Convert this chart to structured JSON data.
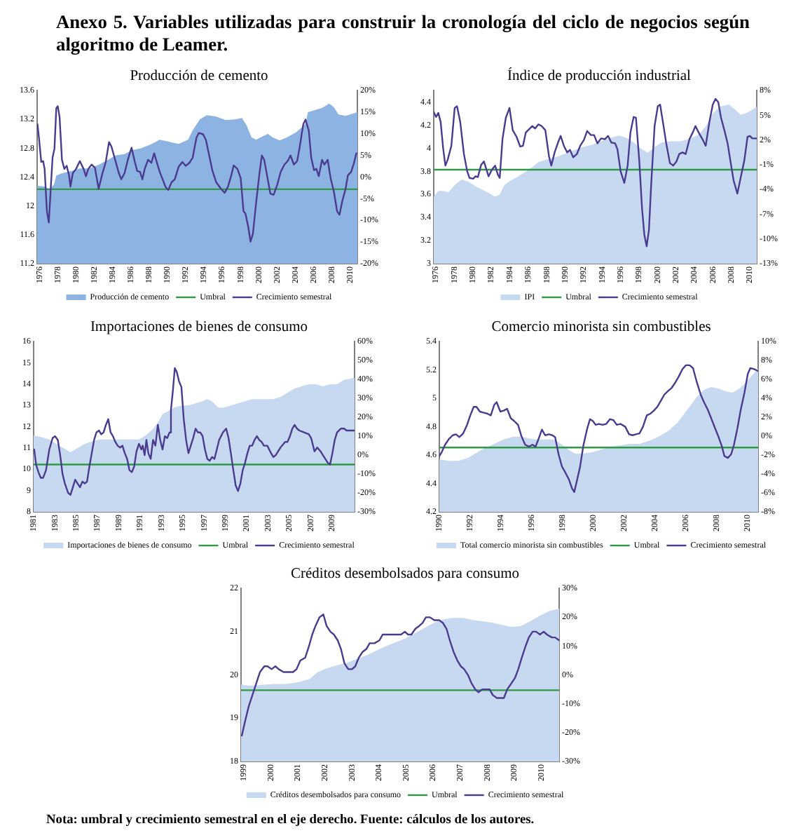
{
  "chart_data": [
    {
      "type": "other",
      "title": "Anexo 5. Variables utilizadas para construir la cronología del ciclo de negocios según algoritmo de Leamer."
    },
    {
      "type": "line",
      "title": "Producción de cemento",
      "xlim": [
        1975.7,
        2010.8
      ],
      "xticks": [
        1976,
        1978,
        1980,
        1982,
        1984,
        1986,
        1988,
        1990,
        1992,
        1994,
        1996,
        1998,
        2000,
        2002,
        2004,
        2006,
        2008,
        2010
      ],
      "ylim": [
        11.2,
        13.6
      ],
      "yticks": [
        11.2,
        11.6,
        12,
        12.4,
        12.8,
        13.2,
        13.6
      ],
      "y2lim": [
        -20,
        20
      ],
      "y2ticks": [
        {
          "value": -20,
          "label": "-20%"
        },
        {
          "value": -15,
          "label": "-15%"
        },
        {
          "value": -10,
          "label": "-10%"
        },
        {
          "value": -5,
          "label": "-5%"
        },
        {
          "value": 0,
          "label": "0%"
        },
        {
          "value": 5,
          "label": "5%"
        },
        {
          "value": 10,
          "label": "10%"
        },
        {
          "value": 15,
          "label": "15%"
        },
        {
          "value": 20,
          "label": "20%"
        }
      ],
      "legend": "bottom",
      "series": [
        {
          "name": "Producción de cemento",
          "type": "area",
          "color": "#8db3e2",
          "x": [
            1975.7,
            1976.52,
            1977.03,
            1977.55,
            1977.8,
            1978.32,
            1979.35,
            1980.38,
            1981.41,
            1982.44,
            1983.47,
            1984.25,
            1985.28,
            1986.05,
            1987.08,
            1988.11,
            1989.14,
            1990.18,
            1991.21,
            1992.24,
            1992.75,
            1993.53,
            1994.3,
            1995.33,
            1996.36,
            1997.39,
            1998.16,
            1998.68,
            1999.2,
            1999.71,
            2000.48,
            2001,
            2001.52,
            2002.29,
            2003.06,
            2004.09,
            2005.12,
            2005.38,
            2005.9,
            2006.93,
            2007.7,
            2008.22,
            2008.73,
            2009.51,
            2010.8
          ],
          "values": [
            12.28,
            12.27,
            12.23,
            12.3,
            12.42,
            12.45,
            12.48,
            12.52,
            12.52,
            12.57,
            12.64,
            12.7,
            12.72,
            12.77,
            12.8,
            12.85,
            12.92,
            12.89,
            12.86,
            12.92,
            13.05,
            13.2,
            13.26,
            13.24,
            13.19,
            13.2,
            13.22,
            13.11,
            12.95,
            12.92,
            12.97,
            13,
            12.95,
            12.91,
            12.95,
            13.02,
            13.14,
            13.3,
            13.32,
            13.36,
            13.42,
            13.37,
            13.27,
            13.25,
            13.3
          ]
        },
        {
          "name": "Umbral",
          "type": "line",
          "axis": "y2",
          "color": "#2f9a45",
          "x": [
            1975.7,
            2010.8
          ],
          "values": [
            -2.8,
            -2.8
          ]
        },
        {
          "name": "Crecimiento semestral",
          "type": "line",
          "axis": "y2",
          "color": "#4b3b8f",
          "x": [
            1975.74,
            1975.9,
            1976.15,
            1976.36,
            1976.52,
            1976.77,
            1976.98,
            1977.19,
            1977.39,
            1977.6,
            1977.8,
            1977.96,
            1978.16,
            1978.42,
            1978.68,
            1978.94,
            1979.2,
            1979.35,
            1979.61,
            1979.97,
            1980.38,
            1980.79,
            1981.05,
            1981.31,
            1981.67,
            1982.03,
            1982.44,
            1982.86,
            1983.22,
            1983.58,
            1983.84,
            1984.25,
            1984.66,
            1984.92,
            1985.28,
            1985.64,
            1986.05,
            1986.41,
            1986.67,
            1986.98,
            1987.24,
            1987.49,
            1987.86,
            1988.22,
            1988.53,
            1988.89,
            1989.14,
            1989.4,
            1989.76,
            1990.07,
            1990.43,
            1990.79,
            1991.21,
            1991.62,
            1991.98,
            1992.39,
            1992.75,
            1993.16,
            1993.42,
            1993.89,
            1994.2,
            1994.56,
            1994.92,
            1995.33,
            1995.85,
            1996.26,
            1996.62,
            1996.98,
            1997.24,
            1997.65,
            1998.01,
            1998.32,
            1998.53,
            1998.84,
            1999.09,
            1999.35,
            1999.71,
            2000.07,
            2000.33,
            2000.59,
            2000.9,
            2001.26,
            2001.62,
            2002.03,
            2002.39,
            2002.8,
            2003.16,
            2003.47,
            2003.84,
            2004.2,
            2004.45,
            2004.87,
            2005.12,
            2005.48,
            2005.74,
            2006.05,
            2006.31,
            2006.57,
            2006.93,
            2007.19,
            2007.55,
            2007.86,
            2008.22,
            2008.58,
            2008.84,
            2009.14,
            2009.51,
            2009.76,
            2010.12,
            2010.43,
            2010.69
          ],
          "values": [
            12.2,
            9.1,
            3.5,
            3.7,
            1.9,
            -7.9,
            -10.5,
            -2.7,
            4.5,
            6.6,
            15.9,
            16.4,
            13.9,
            4.0,
            1.9,
            2.6,
            0.4,
            -2.2,
            0.9,
            1.9,
            3.7,
            1.9,
            0.2,
            1.9,
            2.9,
            2.2,
            -2.7,
            0.9,
            3.5,
            8.1,
            7.1,
            4.0,
            0.9,
            -0.5,
            0.9,
            4.0,
            6.8,
            3.5,
            1.4,
            1.2,
            -0.5,
            1.9,
            4.0,
            3.3,
            5.5,
            2.9,
            1.2,
            -0.2,
            -2.2,
            -3.0,
            -1.2,
            -0.5,
            2.4,
            3.5,
            2.6,
            3.3,
            4.5,
            9.1,
            10.2,
            9.9,
            8.6,
            5.0,
            1.4,
            -1.2,
            -2.7,
            -3.6,
            -2.2,
            0.4,
            2.7,
            1.9,
            -0.2,
            -7.9,
            -8.4,
            -11.5,
            -14.9,
            -13.1,
            -5.8,
            0.9,
            5.0,
            4.0,
            0.4,
            -3.8,
            -4.1,
            -1.7,
            1.2,
            2.9,
            3.7,
            5.0,
            2.9,
            3.7,
            6.6,
            12.2,
            13.3,
            10.7,
            4.5,
            1.6,
            1.9,
            0.2,
            4.0,
            2.9,
            4.0,
            -0.2,
            -3.3,
            -7.9,
            -8.7,
            -5.6,
            -2.7,
            0.4,
            1.2,
            3.3,
            5.5
          ]
        }
      ]
    },
    {
      "type": "line",
      "title": "Índice de producción industrial",
      "xlim": [
        1975.75,
        2010.75
      ],
      "xticks": [
        1976,
        1978,
        1980,
        1982,
        1984,
        1986,
        1988,
        1990,
        1992,
        1994,
        1996,
        1998,
        2000,
        2002,
        2004,
        2006,
        2008,
        2010
      ],
      "ylim": [
        3,
        4.5
      ],
      "yticks": [
        3,
        3.2,
        3.4,
        3.6,
        3.8,
        4,
        4.2,
        4.4
      ],
      "y2lim": [
        -13,
        8
      ],
      "y2ticks": [
        {
          "value": -13,
          "label": "-13%"
        },
        {
          "value": -10,
          "label": "-10%"
        },
        {
          "value": -7,
          "label": "-7%"
        },
        {
          "value": -4,
          "label": "-4%"
        },
        {
          "value": -1,
          "label": "-1%"
        },
        {
          "value": 2,
          "label": "2%"
        },
        {
          "value": 5,
          "label": "5%"
        },
        {
          "value": 8,
          "label": "8%"
        }
      ],
      "legend": "bottom",
      "series": [
        {
          "name": "IPI",
          "type": "area",
          "color": "#c6d9f1",
          "x": [
            1975.75,
            1976.25,
            1976.76,
            1977.36,
            1978.02,
            1978.77,
            1979.53,
            1980.28,
            1981.04,
            1981.79,
            1982.4,
            1982.9,
            1983.41,
            1984.06,
            1984.82,
            1985.57,
            1986.33,
            1987.08,
            1987.84,
            1988.85,
            1989.85,
            1990.86,
            1991.87,
            1992.88,
            1993.88,
            1994.89,
            1995.8,
            1996.65,
            1997.41,
            1998.17,
            1998.92,
            1999.68,
            2000.43,
            2001.44,
            2002.45,
            2003.46,
            2004.46,
            2005.22,
            2005.98,
            2006.73,
            2007.74,
            2008.49,
            2009,
            2009.75,
            2010.75
          ],
          "values": [
            3.58,
            3.63,
            3.63,
            3.62,
            3.68,
            3.73,
            3.71,
            3.67,
            3.64,
            3.61,
            3.58,
            3.6,
            3.68,
            3.72,
            3.75,
            3.79,
            3.83,
            3.88,
            3.9,
            3.92,
            3.95,
            3.98,
            4.01,
            4.03,
            4.06,
            4.09,
            4.11,
            4.09,
            4.05,
            4,
            3.96,
            4.01,
            4.05,
            4.06,
            4.06,
            4.08,
            4.12,
            4.19,
            4.3,
            4.36,
            4.38,
            4.33,
            4.29,
            4.31,
            4.36
          ]
        },
        {
          "name": "Umbral",
          "type": "line",
          "axis": "y2",
          "color": "#2f9a45",
          "x": [
            1975.75,
            2010.75
          ],
          "values": [
            -1.6,
            -1.6
          ]
        },
        {
          "name": "Crecimiento semestral",
          "type": "line",
          "axis": "y2",
          "color": "#4b3b8f",
          "x": [
            1975.75,
            1976,
            1976.25,
            1976.5,
            1976.76,
            1977.01,
            1977.26,
            1977.66,
            1978.02,
            1978.27,
            1978.62,
            1979.02,
            1979.38,
            1979.63,
            1980.03,
            1980.28,
            1980.53,
            1980.89,
            1981.19,
            1981.44,
            1981.69,
            1982.05,
            1982.4,
            1982.7,
            1982.9,
            1983.2,
            1983.56,
            1983.96,
            1984.31,
            1984.72,
            1985.12,
            1985.42,
            1985.72,
            1986.08,
            1986.43,
            1986.73,
            1987.08,
            1987.44,
            1987.84,
            1988.24,
            1988.49,
            1988.85,
            1989.25,
            1989.5,
            1989.85,
            1990.21,
            1990.51,
            1990.86,
            1991.26,
            1991.62,
            1992.02,
            1992.37,
            1992.78,
            1993.13,
            1993.48,
            1993.88,
            1994.29,
            1994.64,
            1994.99,
            1995.4,
            1995.65,
            1996,
            1996.4,
            1996.76,
            1997.06,
            1997.41,
            1997.66,
            1998.02,
            1998.32,
            1998.57,
            1998.82,
            1999.07,
            1999.32,
            1999.68,
            2000.03,
            2000.28,
            2000.58,
            2000.94,
            2001.34,
            2001.69,
            2002.05,
            2002.35,
            2002.7,
            2003.05,
            2003.46,
            2003.81,
            2004.11,
            2004.46,
            2004.87,
            2005.22,
            2005.62,
            2005.98,
            2006.28,
            2006.58,
            2006.88,
            2007.24,
            2007.59,
            2007.89,
            2008.24,
            2008.65,
            2009,
            2009.4,
            2009.75,
            2010.01,
            2010.26,
            2010.75
          ],
          "values": [
            5.4,
            4.8,
            5.3,
            4.2,
            1.1,
            -1.1,
            -0.4,
            1.3,
            5.9,
            6.1,
            4.2,
            0.3,
            -1.8,
            -2.6,
            -2.7,
            -2.4,
            -2.5,
            -1.0,
            -0.6,
            -1.5,
            -2.4,
            -1.6,
            -1.1,
            -2.2,
            -2.6,
            2.1,
            4.7,
            5.9,
            3.2,
            2.4,
            1.2,
            1.3,
            2.9,
            3.3,
            3.7,
            3.4,
            3.9,
            3.7,
            3.2,
            0.0,
            -1.1,
            0.5,
            1.8,
            2.5,
            1.3,
            0.5,
            0.8,
            -0.1,
            0.3,
            1.3,
            2.0,
            3.1,
            2.6,
            2.6,
            1.6,
            2.2,
            2.1,
            2.5,
            1.7,
            1.6,
            0.9,
            -1.8,
            -3.2,
            -1.1,
            2.9,
            4.8,
            4.7,
            -0.5,
            -6.3,
            -9.5,
            -10.9,
            -8.9,
            -3.2,
            3.7,
            6.1,
            6.3,
            4.2,
            1.6,
            -0.8,
            -1.1,
            -0.6,
            0.3,
            0.5,
            0.3,
            2.1,
            2.9,
            3.7,
            2.9,
            2.1,
            1.3,
            4.2,
            6.3,
            7.0,
            6.6,
            4.7,
            3.2,
            1.6,
            -0.5,
            -2.9,
            -4.5,
            -2.6,
            -0.5,
            2.4,
            2.5,
            2.2,
            2.2
          ]
        }
      ]
    },
    {
      "type": "line",
      "title": "Importaciones de bienes de consumo",
      "xlim": [
        1981,
        2011.1
      ],
      "xticks": [
        1981,
        1983,
        1985,
        1987,
        1989,
        1991,
        1993,
        1995,
        1997,
        1999,
        2001,
        2003,
        2005,
        2007,
        2009
      ],
      "ylim": [
        8,
        16
      ],
      "yticks": [
        8,
        9,
        10,
        11,
        12,
        13,
        14,
        15,
        16
      ],
      "y2lim": [
        -30,
        60
      ],
      "y2ticks": [
        {
          "value": -30,
          "label": "-30%"
        },
        {
          "value": -20,
          "label": "-20%"
        },
        {
          "value": -10,
          "label": "-10%"
        },
        {
          "value": 0,
          "label": "0%"
        },
        {
          "value": 10,
          "label": "10%"
        },
        {
          "value": 20,
          "label": "20%"
        },
        {
          "value": 30,
          "label": "30%"
        },
        {
          "value": 40,
          "label": "40%"
        },
        {
          "value": 50,
          "label": "50%"
        },
        {
          "value": 60,
          "label": "60%"
        }
      ],
      "legend": "bottom",
      "series": [
        {
          "name": "Importaciones de bienes de consumo",
          "type": "area",
          "color": "#c6d9f1",
          "x": [
            1981,
            1981.81,
            1982.47,
            1983.13,
            1983.8,
            1984.46,
            1985.12,
            1985.79,
            1986.45,
            1987.12,
            1987.78,
            1988.44,
            1989.11,
            1989.77,
            1990.43,
            1990.88,
            1991.54,
            1992.2,
            1992.65,
            1993.09,
            1993.53,
            1994.19,
            1994.86,
            1995.52,
            1996.19,
            1996.85,
            1997.29,
            1997.73,
            1998.31,
            1998.84,
            1999.5,
            2000.17,
            2000.83,
            2001.5,
            2002.16,
            2002.82,
            2003.49,
            2004.15,
            2004.81,
            2005.48,
            2006.14,
            2006.81,
            2007.47,
            2008.13,
            2008.8,
            2009.46,
            2010.13,
            2011.1
          ],
          "values": [
            11.6,
            11.5,
            11.4,
            11.2,
            11.0,
            10.8,
            11.0,
            11.2,
            11.3,
            11.4,
            11.4,
            11.4,
            11.4,
            11.4,
            11.4,
            11.4,
            11.6,
            11.9,
            12.2,
            12.6,
            12.7,
            12.9,
            13.0,
            13.0,
            13.1,
            13.2,
            13.3,
            13.2,
            12.9,
            12.9,
            13.0,
            13.1,
            13.2,
            13.3,
            13.3,
            13.3,
            13.3,
            13.4,
            13.6,
            13.8,
            13.9,
            14.0,
            14.0,
            13.9,
            14.0,
            14.0,
            14.2,
            14.3
          ]
        },
        {
          "name": "Umbral",
          "type": "line",
          "axis": "y2",
          "color": "#2f9a45",
          "x": [
            1981,
            2011.1
          ],
          "values": [
            -5,
            -5
          ]
        },
        {
          "name": "Crecimiento semestral",
          "type": "line",
          "axis": "y2",
          "color": "#4b3b8f",
          "x": [
            1981.05,
            1981.23,
            1981.45,
            1981.67,
            1981.89,
            1982.16,
            1982.47,
            1982.78,
            1983,
            1983.27,
            1983.49,
            1983.71,
            1983.93,
            1984.24,
            1984.46,
            1984.68,
            1984.9,
            1985.12,
            1985.35,
            1985.57,
            1985.79,
            1986.01,
            1986.23,
            1986.45,
            1986.67,
            1986.89,
            1987.12,
            1987.34,
            1987.56,
            1987.78,
            1988,
            1988.22,
            1988.44,
            1988.66,
            1988.88,
            1989.11,
            1989.33,
            1989.55,
            1989.77,
            1989.99,
            1990.21,
            1990.43,
            1990.65,
            1990.88,
            1991.1,
            1991.23,
            1991.41,
            1991.58,
            1991.76,
            1991.98,
            1992.2,
            1992.42,
            1992.65,
            1992.87,
            1993.09,
            1993.31,
            1993.53,
            1993.75,
            1993.88,
            1994.06,
            1994.24,
            1994.42,
            1994.64,
            1994.86,
            1995.08,
            1995.3,
            1995.52,
            1995.74,
            1995.96,
            1996.19,
            1996.41,
            1996.63,
            1996.85,
            1997.07,
            1997.29,
            1997.51,
            1997.73,
            1997.96,
            1998.18,
            1998.4,
            1998.75,
            1999.06,
            1999.28,
            1999.5,
            1999.73,
            1999.95,
            2000.17,
            2000.39,
            2000.61,
            2000.83,
            2001.05,
            2001.27,
            2001.5,
            2001.72,
            2001.94,
            2002.16,
            2002.38,
            2002.6,
            2002.91,
            2003.27,
            2003.49,
            2003.71,
            2003.93,
            2004.15,
            2004.59,
            2004.81,
            2005.04,
            2005.26,
            2005.48,
            2005.7,
            2005.92,
            2006.36,
            2006.81,
            2007.03,
            2007.34,
            2007.6,
            2007.91,
            2008.13,
            2008.35,
            2008.58,
            2008.8,
            2009.02,
            2009.24,
            2009.46,
            2009.81,
            2010.12,
            2010.35,
            2011.1
          ],
          "values": [
            3,
            -5,
            -9,
            -12,
            -12,
            -8,
            3,
            9,
            10,
            8,
            0,
            -10,
            -15,
            -20,
            -21,
            -17,
            -13,
            -15,
            -17,
            -14,
            -15,
            -14,
            -6,
            1,
            8,
            12,
            13,
            11,
            12,
            16,
            19,
            12,
            10,
            7,
            5,
            4,
            5,
            1,
            -2,
            -8,
            -9,
            -6,
            2,
            6,
            3,
            5,
            0,
            8,
            1,
            -2,
            8,
            5,
            16,
            8,
            3,
            10,
            9,
            12,
            24,
            34,
            46,
            44,
            39,
            36,
            19,
            8,
            1,
            5,
            9,
            14,
            12,
            12,
            10,
            3,
            -2,
            -3,
            -1,
            -2,
            3,
            8,
            12,
            14,
            9,
            1,
            -8,
            -16,
            -19,
            -15,
            -8,
            -4,
            1,
            5,
            5,
            8,
            10,
            8,
            7,
            5,
            5,
            1,
            -1,
            0,
            2,
            4,
            7,
            7,
            10,
            14,
            16,
            14,
            13,
            12,
            11,
            9,
            2,
            4,
            2,
            0,
            -2,
            -4,
            -5,
            1,
            8,
            12,
            14,
            14,
            13,
            13
          ]
        }
      ]
    },
    {
      "type": "line",
      "title": "Comercio minorista sin combustibles",
      "xlim": [
        1990,
        2010.7
      ],
      "xticks": [
        1990,
        1992,
        1994,
        1996,
        1998,
        2000,
        2002,
        2004,
        2006,
        2008,
        2010
      ],
      "ylim": [
        4.2,
        5.4
      ],
      "yticks": [
        4.2,
        4.4,
        4.6,
        4.8,
        5,
        5.2,
        5.4
      ],
      "y2lim": [
        -8,
        10
      ],
      "y2ticks": [
        {
          "value": -8,
          "label": "-8%"
        },
        {
          "value": -6,
          "label": "-6%"
        },
        {
          "value": -4,
          "label": "-4%"
        },
        {
          "value": -2,
          "label": "-2%"
        },
        {
          "value": 0,
          "label": "0%"
        },
        {
          "value": 2,
          "label": "2%"
        },
        {
          "value": 4,
          "label": "4%"
        },
        {
          "value": 6,
          "label": "6%"
        },
        {
          "value": 8,
          "label": "8%"
        },
        {
          "value": 10,
          "label": "10%"
        }
      ],
      "legend": "bottom",
      "series": [
        {
          "name": "Total comercio minorista sin combustibles",
          "type": "area",
          "color": "#c6d9f1",
          "x": [
            1990,
            1990.62,
            1991.24,
            1991.86,
            1992.32,
            1992.94,
            1993.56,
            1994.18,
            1994.8,
            1995.26,
            1995.73,
            1996.19,
            1996.81,
            1997.43,
            1997.89,
            1998.36,
            1998.82,
            1999.29,
            1999.91,
            2000.53,
            2001.15,
            2001.76,
            2002.38,
            2003,
            2003.62,
            2004.24,
            2004.86,
            2005.48,
            2006.1,
            2006.72,
            2007.18,
            2007.65,
            2008.11,
            2008.58,
            2009.04,
            2009.5,
            2009.97,
            2010.7
          ],
          "values": [
            4.57,
            4.56,
            4.56,
            4.58,
            4.61,
            4.65,
            4.68,
            4.71,
            4.73,
            4.73,
            4.72,
            4.71,
            4.71,
            4.71,
            4.68,
            4.64,
            4.61,
            4.61,
            4.62,
            4.64,
            4.66,
            4.67,
            4.68,
            4.68,
            4.7,
            4.73,
            4.77,
            4.83,
            4.92,
            5.01,
            5.06,
            5.08,
            5.07,
            5.05,
            5.04,
            5.07,
            5.12,
            5.21
          ]
        },
        {
          "name": "Umbral",
          "type": "line",
          "axis": "y2",
          "color": "#2f9a45",
          "x": [
            1990,
            2010.7
          ],
          "values": [
            -1.2,
            -1.2
          ]
        },
        {
          "name": "Crecimiento semestral",
          "type": "line",
          "axis": "y2",
          "color": "#4b3b8f",
          "x": [
            1990,
            1990.15,
            1990.37,
            1990.62,
            1990.87,
            1991.08,
            1991.3,
            1991.55,
            1991.8,
            1992.01,
            1992.23,
            1992.41,
            1992.63,
            1992.85,
            1993.1,
            1993.34,
            1993.56,
            1993.72,
            1993.96,
            1994.18,
            1994.4,
            1994.64,
            1994.86,
            1995.11,
            1995.33,
            1995.57,
            1995.82,
            1996.04,
            1996.25,
            1996.44,
            1996.66,
            1996.87,
            1997.12,
            1997.34,
            1997.52,
            1997.74,
            1997.96,
            1998.2,
            1998.42,
            1998.61,
            1998.76,
            1998.92,
            1999.13,
            1999.35,
            1999.6,
            1999.78,
            1999.97,
            2000.15,
            2000.37,
            2000.59,
            2000.84,
            2001.08,
            2001.3,
            2001.52,
            2001.76,
            2002.07,
            2002.32,
            2002.54,
            2002.76,
            2003,
            2003.22,
            2003.47,
            2003.72,
            2003.93,
            2004.15,
            2004.4,
            2004.61,
            2004.86,
            2005.08,
            2005.33,
            2005.54,
            2005.79,
            2006.01,
            2006.25,
            2006.47,
            2006.72,
            2006.97,
            2007.18,
            2007.43,
            2007.65,
            2007.89,
            2008.11,
            2008.33,
            2008.51,
            2008.73,
            2008.95,
            2009.13,
            2009.35,
            2009.57,
            2009.81,
            2010.03,
            2010.19,
            2010.43,
            2010.68
          ],
          "values": [
            -2.1,
            -1.7,
            -0.9,
            -0.3,
            0.1,
            0.2,
            -0.1,
            0.3,
            1.2,
            2.2,
            3.1,
            3.1,
            2.6,
            2.5,
            2.4,
            2.2,
            3.3,
            3.6,
            2.6,
            2.7,
            2.9,
            1.9,
            1.6,
            1.2,
            0.0,
            -0.9,
            -1.1,
            -0.9,
            -1.1,
            -0.3,
            0.7,
            0.1,
            0.2,
            0.1,
            -0.1,
            -1.9,
            -3.2,
            -3.9,
            -4.6,
            -5.5,
            -5.9,
            -4.8,
            -3.3,
            -1.0,
            0.8,
            1.8,
            1.6,
            1.2,
            1.3,
            1.2,
            1.3,
            1.8,
            1.7,
            1.2,
            1.3,
            1.0,
            0.2,
            0.1,
            0.2,
            0.3,
            1.0,
            2.2,
            2.4,
            2.7,
            3.1,
            3.8,
            4.4,
            4.8,
            5.1,
            5.7,
            6.3,
            7.1,
            7.5,
            7.5,
            7.2,
            5.7,
            4.4,
            3.6,
            2.8,
            1.9,
            0.9,
            0.0,
            -1.0,
            -2.1,
            -2.3,
            -1.9,
            -0.9,
            0.8,
            2.8,
            4.6,
            6.6,
            7.2,
            7.1,
            6.9
          ]
        }
      ]
    },
    {
      "type": "line",
      "title": "Créditos desembolsados para consumo",
      "xlim": [
        1998.9,
        2010.65
      ],
      "xticks": [
        1999,
        2000,
        2001,
        2002,
        2003,
        2004,
        2005,
        2006,
        2007,
        2008,
        2009,
        2010
      ],
      "ylim": [
        18,
        22
      ],
      "yticks": [
        18,
        19,
        20,
        21,
        22
      ],
      "y2lim": [
        -30,
        30
      ],
      "y2ticks": [
        {
          "value": -30,
          "label": "-30%"
        },
        {
          "value": -20,
          "label": "-20%"
        },
        {
          "value": -10,
          "label": "-10%"
        },
        {
          "value": 0,
          "label": "0%"
        },
        {
          "value": 10,
          "label": "10%"
        },
        {
          "value": 20,
          "label": "20%"
        },
        {
          "value": 30,
          "label": "30%"
        }
      ],
      "legend": "bottom",
      "series": [
        {
          "name": "Créditos desembolsados para consumo",
          "type": "area",
          "color": "#c6d9f1",
          "x": [
            1998.9,
            1999.23,
            1999.67,
            2000.12,
            2000.56,
            2001,
            2001.44,
            2001.71,
            2002.06,
            2002.42,
            2002.86,
            2003.21,
            2003.57,
            2003.92,
            2004.27,
            2004.63,
            2004.98,
            2005.34,
            2005.69,
            2006.04,
            2006.4,
            2006.75,
            2007.11,
            2007.46,
            2007.81,
            2008.17,
            2008.52,
            2008.88,
            2009.23,
            2009.58,
            2009.94,
            2010.29,
            2010.65
          ],
          "values": [
            19.78,
            19.75,
            19.77,
            19.79,
            19.79,
            19.83,
            19.91,
            20.06,
            20.15,
            20.22,
            20.29,
            20.38,
            20.46,
            20.57,
            20.67,
            20.76,
            20.85,
            20.97,
            21.09,
            21.21,
            21.29,
            21.32,
            21.32,
            21.27,
            21.24,
            21.21,
            21.16,
            21.11,
            21.13,
            21.24,
            21.37,
            21.48,
            21.53
          ]
        },
        {
          "name": "Umbral",
          "type": "line",
          "axis": "y2",
          "color": "#2f9a45",
          "x": [
            1998.9,
            2010.65
          ],
          "values": [
            -5.3,
            -5.3
          ]
        },
        {
          "name": "Crecimiento semestral",
          "type": "line",
          "axis": "y2",
          "color": "#4b3b8f",
          "x": [
            1998.93,
            1999.05,
            1999.18,
            1999.32,
            1999.46,
            1999.6,
            1999.76,
            1999.88,
            2000.03,
            2000.17,
            2000.29,
            2000.47,
            2000.65,
            2000.82,
            2000.95,
            2001.09,
            2001.27,
            2001.41,
            2001.53,
            2001.65,
            2001.8,
            2001.94,
            2002.06,
            2002.2,
            2002.33,
            2002.47,
            2002.59,
            2002.72,
            2002.86,
            2003,
            2003.12,
            2003.25,
            2003.39,
            2003.53,
            2003.65,
            2003.83,
            2004.01,
            2004.13,
            2004.27,
            2004.45,
            2004.63,
            2004.81,
            2004.95,
            2005.07,
            2005.19,
            2005.34,
            2005.48,
            2005.6,
            2005.73,
            2005.87,
            2006.04,
            2006.22,
            2006.36,
            2006.49,
            2006.61,
            2006.75,
            2006.89,
            2007.02,
            2007.14,
            2007.28,
            2007.42,
            2007.55,
            2007.67,
            2007.81,
            2007.96,
            2008.08,
            2008.2,
            2008.35,
            2008.49,
            2008.61,
            2008.73,
            2008.88,
            2009.02,
            2009.14,
            2009.27,
            2009.41,
            2009.53,
            2009.67,
            2009.8,
            2009.94,
            2010.08,
            2010.2,
            2010.38,
            2010.5,
            2010.65
          ],
          "values": [
            -21,
            -16,
            -11,
            -7,
            -3,
            1,
            3,
            3,
            2,
            3,
            2,
            1,
            1,
            1,
            2,
            5,
            6,
            10,
            14,
            17,
            20,
            21,
            17,
            15,
            14,
            12,
            9,
            4,
            2,
            2,
            3,
            6,
            8,
            9,
            11,
            11,
            12,
            14,
            14,
            14,
            14,
            14,
            15,
            14,
            14,
            16,
            17,
            18,
            20,
            20,
            19,
            19,
            18,
            16,
            12,
            8,
            5,
            3,
            2,
            0,
            -3,
            -5,
            -6,
            -5,
            -5,
            -5,
            -7,
            -8,
            -8,
            -8,
            -5,
            -3,
            -1,
            2,
            6,
            10,
            13,
            15,
            15,
            14,
            15,
            14,
            13,
            13,
            12
          ]
        }
      ]
    },
    {
      "type": "other",
      "annotations": [
        "Nota: umbral y crecimiento semestral en el eje derecho. Fuente: cálculos de los autores."
      ]
    }
  ]
}
